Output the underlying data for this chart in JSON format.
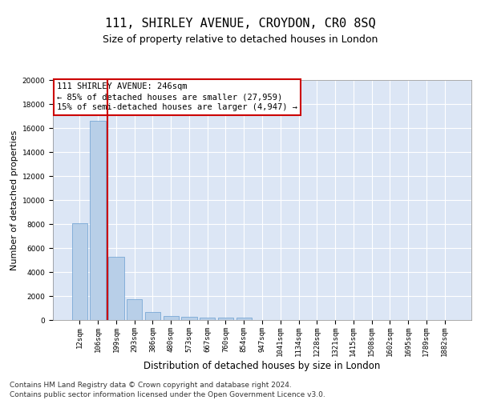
{
  "title": "111, SHIRLEY AVENUE, CROYDON, CR0 8SQ",
  "subtitle": "Size of property relative to detached houses in London",
  "xlabel": "Distribution of detached houses by size in London",
  "ylabel": "Number of detached properties",
  "categories": [
    "12sqm",
    "106sqm",
    "199sqm",
    "293sqm",
    "386sqm",
    "480sqm",
    "573sqm",
    "667sqm",
    "760sqm",
    "854sqm",
    "947sqm",
    "1041sqm",
    "1134sqm",
    "1228sqm",
    "1321sqm",
    "1415sqm",
    "1508sqm",
    "1602sqm",
    "1695sqm",
    "1789sqm",
    "1882sqm"
  ],
  "values": [
    8100,
    16600,
    5300,
    1750,
    650,
    350,
    280,
    230,
    210,
    180,
    0,
    0,
    0,
    0,
    0,
    0,
    0,
    0,
    0,
    0,
    0
  ],
  "bar_color": "#b8cfe8",
  "bar_edge_color": "#6a9fd0",
  "vline_color": "#cc0000",
  "vline_pos": 1.5,
  "annotation_text": "111 SHIRLEY AVENUE: 246sqm\n← 85% of detached houses are smaller (27,959)\n15% of semi-detached houses are larger (4,947) →",
  "annotation_box_color": "#cc0000",
  "ylim": [
    0,
    20000
  ],
  "yticks": [
    0,
    2000,
    4000,
    6000,
    8000,
    10000,
    12000,
    14000,
    16000,
    18000,
    20000
  ],
  "background_color": "#dce6f5",
  "grid_color": "#ffffff",
  "footer": "Contains HM Land Registry data © Crown copyright and database right 2024.\nContains public sector information licensed under the Open Government Licence v3.0.",
  "title_fontsize": 11,
  "subtitle_fontsize": 9,
  "xlabel_fontsize": 8.5,
  "ylabel_fontsize": 8,
  "tick_fontsize": 6.5,
  "annotation_fontsize": 7.5,
  "footer_fontsize": 6.5
}
